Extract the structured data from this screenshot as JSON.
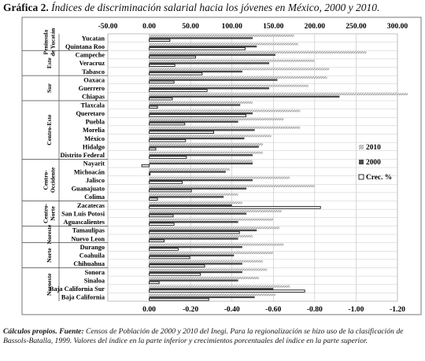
{
  "title": {
    "label": "Gráfica 2.",
    "text": "Índices de discriminación salarial hacia los jóvenes en México, 2000 y 2010."
  },
  "note": {
    "prefix": "Cálculos propios.",
    "source_label": "Fuente:",
    "text": "Censos de Población de 2000 y 2010 del Inegi. Para la regionalización se hizo uso de la clasificación de Bassols-Batalla, 1999. Valores del índice en la parte inferior y crecimientos porcentuales del índice en la parte superior."
  },
  "chart_data": {
    "type": "bar",
    "orientation": "horizontal",
    "categories": [
      "Yucatan",
      "Quintana Roo",
      "Campeche",
      "Veracruz",
      "Tabasco",
      "Oaxaca",
      "Guerrero",
      "Chiapas",
      "Tlaxcala",
      "Queretaro",
      "Puebla",
      "Morelia",
      "México",
      "Hidalgo",
      "Distrito Federal",
      "Nayarit",
      "Michoacán",
      "Jalisco",
      "Guanajuato",
      "Colima",
      "Zacatecas",
      "San Luis Potosi",
      "Aguascalientes",
      "Tamaulipas",
      "Nuevo Leon",
      "Durango",
      "Coahuila",
      "Chihuahua",
      "Sonora",
      "Sinaloa",
      "Baja California Sur",
      "Baja California"
    ],
    "regions": [
      {
        "name": "Peninsula de Yucatán",
        "start": 0,
        "end": 1
      },
      {
        "name": "Este",
        "start": 2,
        "end": 4
      },
      {
        "name": "Sur",
        "start": 5,
        "end": 7
      },
      {
        "name": "Centro-Este",
        "start": 8,
        "end": 14
      },
      {
        "name": "Centro-Occidente",
        "start": 15,
        "end": 19
      },
      {
        "name": "Centro-Norte",
        "start": 20,
        "end": 22
      },
      {
        "name": "Noreste",
        "start": 23,
        "end": 24
      },
      {
        "name": "Norte",
        "start": 25,
        "end": 27
      },
      {
        "name": "Noroeste",
        "start": 28,
        "end": 31
      }
    ],
    "series": [
      {
        "name": "2010",
        "axis": "bottom",
        "values": [
          -0.7,
          -0.72,
          -1.05,
          -0.8,
          -0.87,
          -0.86,
          -0.77,
          -1.25,
          -0.5,
          -0.73,
          -0.65,
          -0.73,
          -0.59,
          -0.55,
          -0.55,
          -0.5,
          -0.39,
          -0.68,
          -0.8,
          -0.43,
          -0.45,
          -0.64,
          -0.6,
          -0.63,
          -0.5,
          -0.65,
          -0.6,
          -0.55,
          -0.57,
          -0.53,
          -0.68,
          -0.61
        ]
      },
      {
        "name": "2000",
        "axis": "bottom",
        "values": [
          -0.5,
          -0.52,
          -0.61,
          -0.58,
          -0.45,
          -0.62,
          -0.58,
          -0.92,
          -0.44,
          -0.5,
          -0.43,
          -0.51,
          -0.46,
          -0.53,
          -0.5,
          -0.5,
          -0.37,
          -0.5,
          -0.47,
          -0.36,
          -0.4,
          -0.47,
          -0.43,
          -0.52,
          -0.43,
          -0.45,
          -0.41,
          -0.45,
          -0.45,
          -0.43,
          -0.6,
          -0.51
        ]
      },
      {
        "name": "Crec. %",
        "axis": "top",
        "values": [
          25,
          116,
          56,
          31,
          64,
          30,
          70,
          28,
          10,
          117,
          43,
          78,
          44,
          8,
          45,
          -9,
          0,
          40,
          51,
          10,
          207,
          29,
          30,
          109,
          18,
          35,
          49,
          67,
          62,
          12,
          188,
          72
        ]
      }
    ],
    "x_top": {
      "ticks": [
        "-50.00",
        "0.00",
        "50.00",
        "100.00",
        "150.00",
        "200.00",
        "250.00",
        "300.00"
      ],
      "range": [
        -50,
        300
      ]
    },
    "x_bottom": {
      "ticks": [
        "0.00",
        "-0.20",
        "-0.40",
        "-0.60",
        "-0.80",
        "-1.00",
        "-1.20"
      ],
      "range": [
        0.2,
        -1.2
      ]
    },
    "legend_position": "right",
    "grid": true,
    "colors": {
      "2010": "#c8c8c8",
      "2000": "#4a4a4a",
      "Crec. %": "#ffffff",
      "outline": "#000000",
      "plot_background": "#ffffff"
    }
  }
}
